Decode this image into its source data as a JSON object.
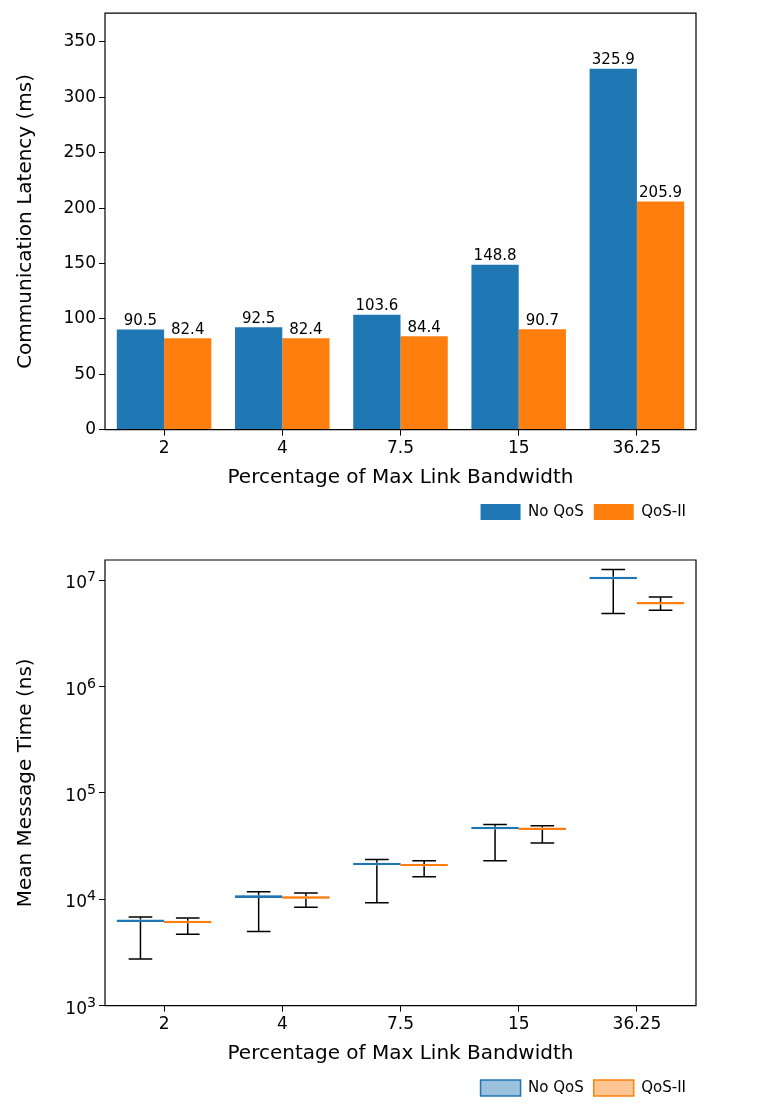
{
  "chart_data": [
    {
      "type": "bar",
      "xlabel": "Percentage of Max Link Bandwidth",
      "ylabel": "Communication Latency (ms)",
      "categories": [
        "2",
        "4",
        "7.5",
        "15",
        "36.25"
      ],
      "series": [
        {
          "name": "No QoS",
          "color": "#1f77b4",
          "values": [
            90.5,
            92.5,
            103.6,
            148.8,
            325.9
          ]
        },
        {
          "name": "QoS-II",
          "color": "#ff7f0e",
          "values": [
            82.4,
            82.4,
            84.4,
            90.7,
            205.9
          ]
        }
      ],
      "ylim": [
        0,
        376
      ],
      "yticks": [
        0,
        50,
        100,
        150,
        200,
        250,
        300,
        350
      ],
      "data_labels": true,
      "grid": false,
      "legend": "bottom right"
    },
    {
      "type": "box",
      "xlabel": "Percentage of Max Link Bandwidth",
      "ylabel": "Mean Message Time (ns)",
      "categories": [
        "2",
        "4",
        "7.5",
        "15",
        "36.25"
      ],
      "series": [
        {
          "name": "No QoS",
          "color": "#1f77b4",
          "boxes": [
            {
              "low": 2750,
              "q1": 6100,
              "median": 6270,
              "q3": 6450,
              "high": 6820
            },
            {
              "low": 4980,
              "q1": 10300,
              "median": 10600,
              "q3": 10900,
              "high": 11750
            },
            {
              "low": 9270,
              "q1": 20900,
              "median": 21500,
              "q3": 22100,
              "high": 23600
            },
            {
              "low": 23000,
              "q1": 45500,
              "median": 46800,
              "q3": 48100,
              "high": 50500
            },
            {
              "low": 4870000,
              "q1": 10200000,
              "median": 10500000,
              "q3": 10800000,
              "high": 12600000
            }
          ]
        },
        {
          "name": "QoS-II",
          "color": "#ff7f0e",
          "boxes": [
            {
              "low": 4700,
              "q1": 5950,
              "median": 6110,
              "q3": 6280,
              "high": 6650
            },
            {
              "low": 8430,
              "q1": 10100,
              "median": 10400,
              "q3": 10700,
              "high": 11460
            },
            {
              "low": 16300,
              "q1": 20400,
              "median": 20900,
              "q3": 21500,
              "high": 23000
            },
            {
              "low": 33900,
              "q1": 44800,
              "median": 46000,
              "q3": 47300,
              "high": 49200
            },
            {
              "low": 5210000,
              "q1": 5900000,
              "median": 6070000,
              "q3": 6240000,
              "high": 6950000
            }
          ]
        }
      ],
      "log": "y",
      "ylim": [
        1000,
        15500000
      ],
      "yticks": [
        {
          "value": 1000,
          "label": "10$^{3}$"
        },
        {
          "value": 10000,
          "label": "10$^{4}$"
        },
        {
          "value": 100000,
          "label": "10$^{5}$"
        },
        {
          "value": 1000000,
          "label": "10$^{6}$"
        },
        {
          "value": 10000000,
          "label": "10$^{7}$"
        }
      ],
      "grid": false,
      "legend": "bottom right"
    }
  ]
}
